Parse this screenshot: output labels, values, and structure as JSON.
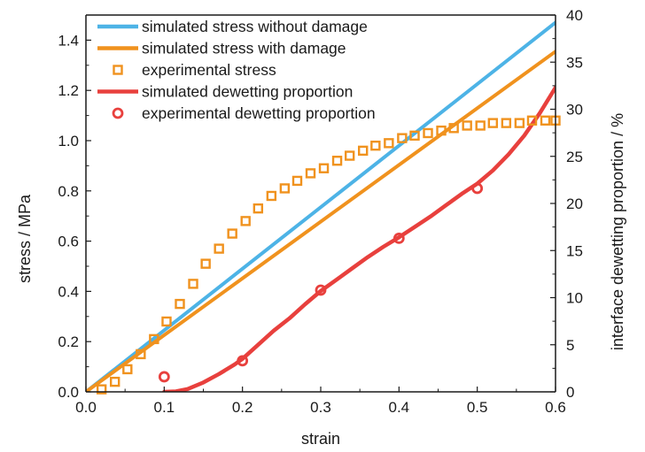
{
  "chart_data": {
    "type": "line",
    "x_label": "strain",
    "y_label_left": "stress / MPa",
    "y_label_right": "interface dewetting proportion / %",
    "x_range": [
      0.0,
      0.6
    ],
    "y_left_range": [
      0.0,
      1.5
    ],
    "y_right_range": [
      0,
      40
    ],
    "x_ticks": [
      "0.0",
      "0.1",
      "0.2",
      "0.3",
      "0.4",
      "0.5",
      "0.6"
    ],
    "y_left_ticks": [
      "0.0",
      "0.2",
      "0.4",
      "0.6",
      "0.8",
      "1.0",
      "1.2",
      "1.4"
    ],
    "y_right_ticks": [
      "0",
      "5",
      "10",
      "15",
      "20",
      "25",
      "30",
      "35",
      "40"
    ],
    "grid": false,
    "legend_position": "top-left",
    "series": [
      {
        "name": "simulated stress without damage",
        "kind": "line",
        "axis": "left",
        "color": "#4db3e6",
        "x": [
          0.0,
          0.6
        ],
        "y": [
          0.0,
          1.47
        ]
      },
      {
        "name": "simulated stress with damage",
        "kind": "line",
        "axis": "left",
        "color": "#f0921e",
        "x": [
          0.0,
          0.6
        ],
        "y": [
          0.0,
          1.355
        ]
      },
      {
        "name": "experimental stress",
        "kind": "square-markers",
        "axis": "left",
        "color": "#f0921e",
        "x": [
          0.02,
          0.037,
          0.053,
          0.07,
          0.087,
          0.103,
          0.12,
          0.137,
          0.153,
          0.17,
          0.187,
          0.204,
          0.22,
          0.237,
          0.254,
          0.27,
          0.287,
          0.304,
          0.321,
          0.337,
          0.354,
          0.37,
          0.387,
          0.404,
          0.42,
          0.437,
          0.454,
          0.47,
          0.487,
          0.504,
          0.52,
          0.537,
          0.554,
          0.57,
          0.587,
          0.6
        ],
        "y": [
          0.01,
          0.04,
          0.09,
          0.15,
          0.21,
          0.28,
          0.35,
          0.43,
          0.51,
          0.57,
          0.63,
          0.68,
          0.73,
          0.78,
          0.81,
          0.84,
          0.87,
          0.89,
          0.92,
          0.94,
          0.96,
          0.98,
          0.99,
          1.01,
          1.02,
          1.03,
          1.04,
          1.05,
          1.06,
          1.06,
          1.07,
          1.07,
          1.07,
          1.08,
          1.08,
          1.08
        ]
      },
      {
        "name": "simulated dewetting proportion",
        "kind": "line",
        "axis": "right",
        "color": "#e8403d",
        "x": [
          0.1,
          0.115,
          0.13,
          0.15,
          0.17,
          0.19,
          0.2,
          0.22,
          0.24,
          0.26,
          0.28,
          0.3,
          0.32,
          0.34,
          0.36,
          0.38,
          0.4,
          0.42,
          0.44,
          0.46,
          0.48,
          0.5,
          0.52,
          0.54,
          0.56,
          0.58,
          0.6
        ],
        "y": [
          0.0,
          0.05,
          0.3,
          1.0,
          1.9,
          2.9,
          3.5,
          5.0,
          6.5,
          7.8,
          9.3,
          10.7,
          11.9,
          13.1,
          14.3,
          15.4,
          16.4,
          17.5,
          18.6,
          19.8,
          21.0,
          22.1,
          23.5,
          25.2,
          27.2,
          29.6,
          32.3
        ]
      },
      {
        "name": "experimental dewetting proportion",
        "kind": "circle-markers",
        "axis": "right",
        "color": "#e8403d",
        "x": [
          0.1,
          0.2,
          0.3,
          0.4,
          0.5
        ],
        "y": [
          1.6,
          3.3,
          10.8,
          16.3,
          21.6
        ]
      }
    ]
  }
}
